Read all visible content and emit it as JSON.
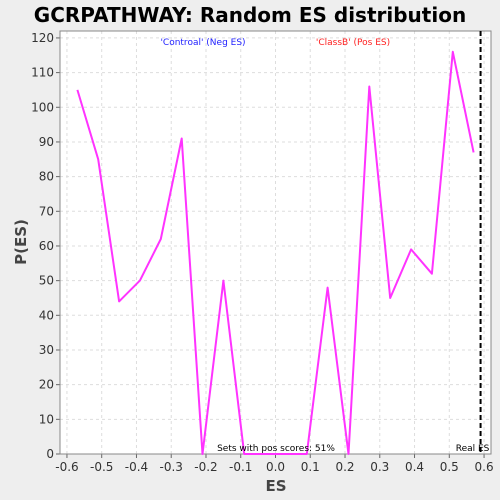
{
  "chart_data": {
    "type": "line",
    "title": "GCRPATHWAY: Random ES distribution",
    "xlabel": "ES",
    "ylabel": "P(ES)",
    "xlim": [
      -0.62,
      0.62
    ],
    "ylim": [
      0,
      122
    ],
    "x_ticks": [
      -0.6,
      -0.5,
      -0.4,
      -0.3,
      -0.2,
      -0.1,
      0.0,
      0.1,
      0.2,
      0.3,
      0.4,
      0.5,
      0.6
    ],
    "x_tick_labels": [
      "-0.6",
      "-0.5",
      "-0.4",
      "-0.3",
      "-0.2",
      "-0.1",
      "0.0",
      "0.1",
      "0.2",
      "0.3",
      "0.4",
      "0.5",
      "0.6"
    ],
    "y_ticks": [
      0,
      10,
      20,
      30,
      40,
      50,
      60,
      70,
      80,
      90,
      100,
      110,
      120
    ],
    "y_tick_labels": [
      "0",
      "10",
      "20",
      "30",
      "40",
      "50",
      "60",
      "70",
      "80",
      "90",
      "100",
      "110",
      "120"
    ],
    "grid": true,
    "series": [
      {
        "color": "#ff33ff",
        "x": [
          -0.57,
          -0.51,
          -0.45,
          -0.39,
          -0.33,
          -0.27,
          -0.21,
          -0.15,
          -0.09,
          -0.03,
          0.03,
          0.09,
          0.15,
          0.21,
          0.27,
          0.33,
          0.39,
          0.45,
          0.51,
          0.57
        ],
        "y": [
          105,
          85,
          44,
          50,
          62,
          91,
          0,
          50,
          0,
          0,
          0,
          0,
          48,
          0,
          106,
          45,
          59,
          52,
          116,
          87
        ]
      }
    ],
    "real_es_line": {
      "x": 0.59,
      "label": "Real ES",
      "color": "#000000"
    },
    "annotations": {
      "neg_label": {
        "text": "'Controal' (Neg ES)",
        "color": "#2222ff"
      },
      "pos_label": {
        "text": "'ClassB' (Pos ES)",
        "color": "#ff2222"
      },
      "pos_scores": {
        "text": "Sets with pos scores: 51%",
        "color": "#000000"
      }
    }
  }
}
